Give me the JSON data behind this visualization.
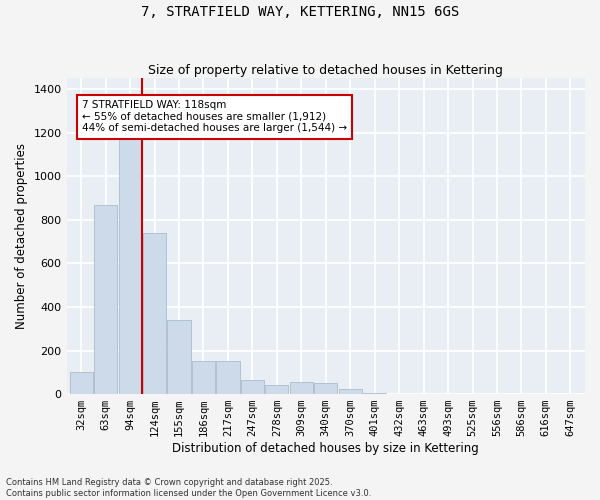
{
  "title1": "7, STRATFIELD WAY, KETTERING, NN15 6GS",
  "title2": "Size of property relative to detached houses in Kettering",
  "xlabel": "Distribution of detached houses by size in Kettering",
  "ylabel": "Number of detached properties",
  "categories": [
    "32sqm",
    "63sqm",
    "94sqm",
    "124sqm",
    "155sqm",
    "186sqm",
    "217sqm",
    "247sqm",
    "278sqm",
    "309sqm",
    "340sqm",
    "370sqm",
    "401sqm",
    "432sqm",
    "463sqm",
    "493sqm",
    "525sqm",
    "556sqm",
    "586sqm",
    "616sqm",
    "647sqm"
  ],
  "values": [
    100,
    870,
    1200,
    740,
    340,
    150,
    150,
    65,
    40,
    55,
    50,
    25,
    5,
    2,
    1,
    0,
    0,
    0,
    0,
    0,
    0
  ],
  "bar_color": "#ccdaea",
  "bar_edgecolor": "#aabccc",
  "vline_color": "#cc0000",
  "annotation_box_text": "7 STRATFIELD WAY: 118sqm\n← 55% of detached houses are smaller (1,912)\n44% of semi-detached houses are larger (1,544) →",
  "annotation_color": "#cc0000",
  "ylim": [
    0,
    1450
  ],
  "yticks": [
    0,
    200,
    400,
    600,
    800,
    1000,
    1200,
    1400
  ],
  "footnote": "Contains HM Land Registry data © Crown copyright and database right 2025.\nContains public sector information licensed under the Open Government Licence v3.0.",
  "bg_color": "#e8eef4",
  "grid_color": "#ffffff",
  "fig_bg": "#f4f4f4"
}
